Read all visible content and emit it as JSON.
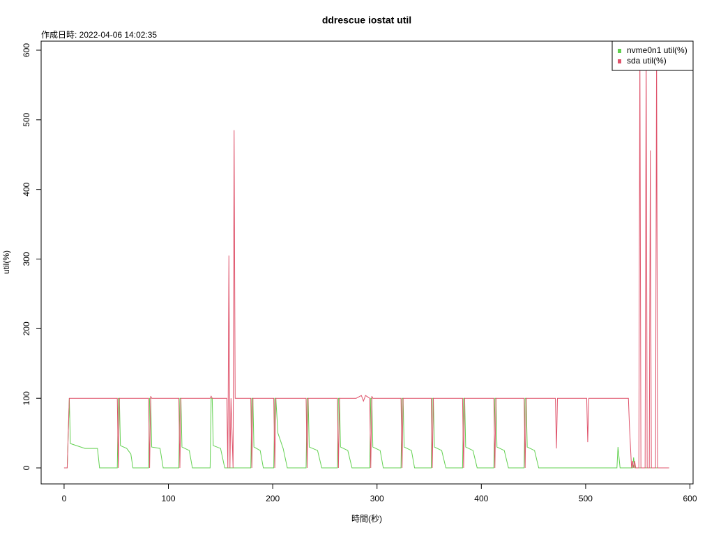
{
  "chart_data": {
    "type": "line",
    "title": "ddrescue iostat util",
    "subtitle": "作成日時: 2022-04-06 14:02:35",
    "x_label": "時間(秒)",
    "y_label": "util(%)",
    "xlim": [
      -22,
      603
    ],
    "ylim": [
      -23,
      613
    ],
    "xticks": [
      0,
      100,
      200,
      300,
      400,
      500,
      600
    ],
    "yticks": [
      0,
      100,
      200,
      300,
      400,
      500,
      600
    ],
    "legend": "top-right",
    "x": [
      0,
      3,
      5,
      6,
      10,
      20,
      32,
      34,
      51,
      52,
      53,
      54,
      60,
      64,
      66,
      81,
      82,
      83,
      84,
      92,
      95,
      110,
      111,
      112,
      113,
      120,
      123,
      140,
      141,
      142,
      143,
      150,
      154,
      156,
      157,
      158,
      159,
      160,
      162,
      163,
      164,
      179,
      180,
      181,
      182,
      188,
      191,
      201,
      202,
      203,
      205,
      210,
      214,
      232,
      233,
      234,
      235,
      243,
      247,
      262,
      263,
      264,
      265,
      272,
      276,
      280,
      285,
      287,
      289,
      293,
      294,
      295,
      296,
      303,
      306,
      323,
      324,
      325,
      326,
      333,
      336,
      352,
      353,
      354,
      355,
      362,
      366,
      382,
      383,
      384,
      385,
      392,
      396,
      412,
      413,
      414,
      415,
      422,
      426,
      441,
      442,
      443,
      444,
      451,
      455,
      471,
      472,
      473,
      501,
      502,
      503,
      530,
      531,
      533,
      535,
      541,
      542,
      544,
      545,
      546,
      547,
      548,
      550,
      551,
      552,
      553,
      556,
      557,
      558,
      559,
      561,
      562,
      563,
      566,
      567,
      568,
      569,
      570,
      580
    ],
    "series": [
      {
        "name": "nvme0n1 util(%)",
        "color": "#61D04F",
        "values": [
          0,
          0,
          100,
          35,
          33,
          28,
          28,
          0,
          0,
          100,
          100,
          32,
          28,
          20,
          0,
          0,
          100,
          100,
          30,
          28,
          0,
          0,
          100,
          100,
          30,
          25,
          0,
          0,
          100,
          100,
          32,
          28,
          0,
          0,
          0,
          0,
          0,
          0,
          0,
          0,
          0,
          0,
          100,
          100,
          30,
          25,
          0,
          0,
          100,
          100,
          50,
          28,
          0,
          0,
          100,
          100,
          30,
          25,
          0,
          0,
          100,
          100,
          30,
          25,
          0,
          0,
          0,
          0,
          0,
          0,
          100,
          100,
          30,
          25,
          0,
          0,
          100,
          100,
          30,
          25,
          0,
          0,
          100,
          100,
          30,
          25,
          0,
          0,
          100,
          100,
          30,
          25,
          0,
          0,
          100,
          100,
          30,
          25,
          0,
          0,
          100,
          100,
          30,
          25,
          0,
          0,
          0,
          0,
          0,
          0,
          0,
          0,
          30,
          0,
          0,
          0,
          0,
          0,
          0,
          15,
          0,
          0,
          0,
          0,
          0,
          0,
          0,
          0,
          0,
          0,
          0,
          0,
          0,
          0,
          0,
          0,
          0,
          0,
          0
        ]
      },
      {
        "name": "sda util(%)",
        "color": "#DF536B",
        "values": [
          0,
          0,
          100,
          100,
          100,
          100,
          100,
          100,
          100,
          0,
          100,
          100,
          100,
          100,
          100,
          100,
          0,
          103,
          100,
          100,
          100,
          100,
          0,
          100,
          100,
          100,
          100,
          100,
          103,
          100,
          100,
          100,
          100,
          100,
          0,
          305,
          0,
          100,
          0,
          485,
          100,
          100,
          0,
          100,
          100,
          100,
          100,
          100,
          0,
          100,
          100,
          100,
          100,
          100,
          0,
          100,
          100,
          100,
          100,
          100,
          0,
          100,
          100,
          100,
          100,
          100,
          104,
          96,
          104,
          100,
          0,
          103,
          100,
          100,
          100,
          100,
          0,
          100,
          100,
          100,
          100,
          100,
          0,
          100,
          100,
          100,
          100,
          100,
          0,
          100,
          100,
          100,
          100,
          100,
          0,
          100,
          100,
          100,
          100,
          100,
          0,
          100,
          100,
          100,
          100,
          100,
          28,
          100,
          100,
          37,
          100,
          100,
          100,
          100,
          100,
          100,
          60,
          0,
          10,
          0,
          10,
          0,
          0,
          0,
          610,
          0,
          0,
          0,
          610,
          0,
          0,
          456,
          0,
          0,
          0,
          610,
          0,
          0,
          0
        ]
      }
    ]
  }
}
